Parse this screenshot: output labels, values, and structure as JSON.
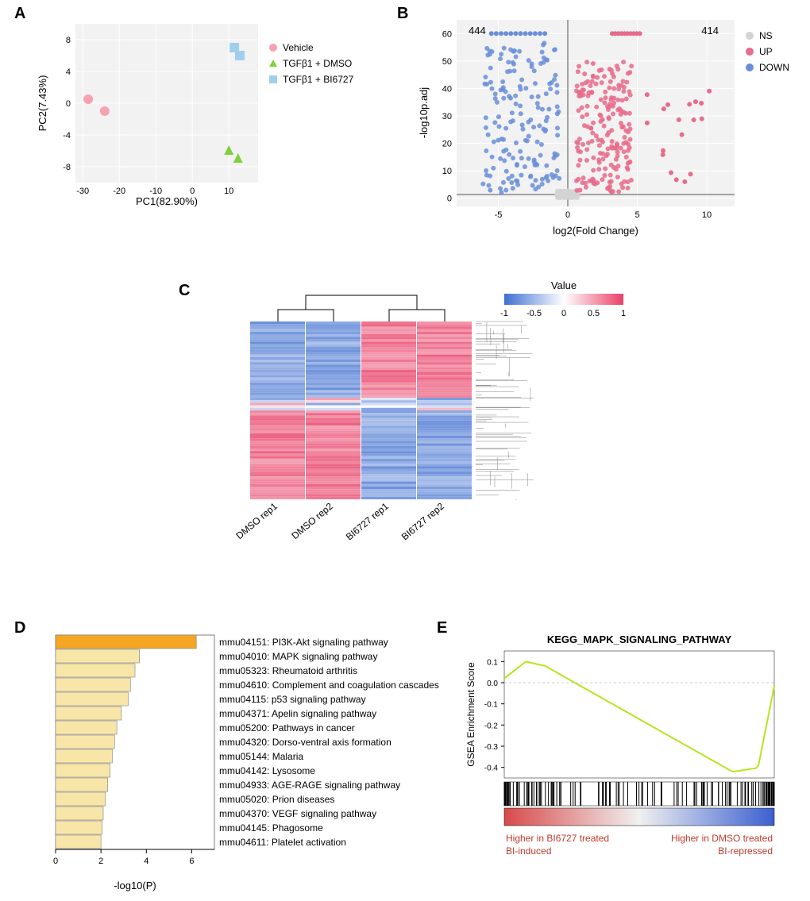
{
  "panelA": {
    "label": "A",
    "type": "scatter",
    "xlabel": "PC1(82.90%)",
    "ylabel": "PC2(7.43%)",
    "xlim": [
      -32,
      18
    ],
    "ylim": [
      -10,
      10
    ],
    "xticks": [
      -30,
      -20,
      -10,
      0,
      10
    ],
    "yticks": [
      -8,
      -4,
      0,
      4,
      8
    ],
    "background_color": "#f2f2f2",
    "grid_color": "#ffffff",
    "series": [
      {
        "name": "Vehicle",
        "marker": "circle",
        "color": "#f7a1b3",
        "points": [
          [
            -28.5,
            0.5
          ],
          [
            -24,
            -1
          ]
        ]
      },
      {
        "name": "TGFβ1 + DMSO",
        "marker": "triangle",
        "color": "#7fd13b",
        "points": [
          [
            10,
            -6
          ],
          [
            12.5,
            -7
          ]
        ]
      },
      {
        "name": "TGFβ1 + BI6727",
        "marker": "square",
        "color": "#a0cfee",
        "points": [
          [
            11.5,
            7
          ],
          [
            13,
            6
          ]
        ]
      }
    ]
  },
  "panelB": {
    "label": "B",
    "type": "volcano",
    "xlabel": "log2(Fold Change)",
    "ylabel": "-log10p.adj",
    "xlim": [
      -8,
      12
    ],
    "ylim": [
      -3,
      65
    ],
    "xticks": [
      -5,
      0,
      5,
      10
    ],
    "yticks": [
      0,
      10,
      20,
      30,
      40,
      50,
      60
    ],
    "background_color": "#f2f2f2",
    "grid_color": "#ffffff",
    "count_down": "444",
    "count_up": "414",
    "legend": [
      {
        "name": "NS",
        "color": "#d3d3d3"
      },
      {
        "name": "UP",
        "color": "#e86b8a"
      },
      {
        "name": "DOWN",
        "color": "#6a8fd8"
      }
    ],
    "colors": {
      "ns": "#d3d3d3",
      "up": "#e86b8a",
      "down": "#6a8fd8"
    }
  },
  "panelC": {
    "label": "C",
    "type": "heatmap",
    "xlabels": [
      "DMSO rep1",
      "DMSO rep2",
      "BI6727 rep1",
      "BI6727 rep2"
    ],
    "legend_title": "Value",
    "legend_ticks": [
      "-1",
      "-0.5",
      "0",
      "0.5",
      "1"
    ],
    "color_low": "#3f6fd1",
    "color_mid": "#ffffff",
    "color_high": "#e94168"
  },
  "panelD": {
    "label": "D",
    "type": "bar",
    "xlabel": "-log10(P)",
    "xlim": [
      0,
      7
    ],
    "xticks": [
      0,
      2,
      4,
      6
    ],
    "highlight_color": "#f5a623",
    "bar_color": "#f7e6a8",
    "border_color": "#808080",
    "items": [
      {
        "id": "mmu04151",
        "name": "PI3K-Akt signaling pathway",
        "value": 6.2,
        "highlight": true
      },
      {
        "id": "mmu04010",
        "name": "MAPK signaling pathway",
        "value": 3.7,
        "highlight": false
      },
      {
        "id": "mmu05323",
        "name": "Rheumatoid arthritis",
        "value": 3.5,
        "highlight": false
      },
      {
        "id": "mmu04610",
        "name": "Complement and coagulation cascades",
        "value": 3.3,
        "highlight": false
      },
      {
        "id": "mmu04115",
        "name": "p53 signaling pathway",
        "value": 3.2,
        "highlight": false
      },
      {
        "id": "mmu04371",
        "name": "Apelin signaling pathway",
        "value": 2.9,
        "highlight": false
      },
      {
        "id": "mmu05200",
        "name": "Pathways in cancer",
        "value": 2.7,
        "highlight": false
      },
      {
        "id": "mmu04320",
        "name": "Dorso-ventral axis formation",
        "value": 2.6,
        "highlight": false
      },
      {
        "id": "mmu05144",
        "name": "Malaria",
        "value": 2.5,
        "highlight": false
      },
      {
        "id": "mmu04142",
        "name": "Lysosome",
        "value": 2.4,
        "highlight": false
      },
      {
        "id": "mmu04933",
        "name": "AGE-RAGE signaling pathway",
        "value": 2.3,
        "highlight": false
      },
      {
        "id": "mmu05020",
        "name": "Prion diseases",
        "value": 2.2,
        "highlight": false
      },
      {
        "id": "mmu04370",
        "name": "VEGF signaling pathway",
        "value": 2.1,
        "highlight": false
      },
      {
        "id": "mmu04145",
        "name": "Phagosome",
        "value": 2.05,
        "highlight": false
      },
      {
        "id": "mmu04611",
        "name": "Platelet activation",
        "value": 2.0,
        "highlight": false
      }
    ]
  },
  "panelE": {
    "label": "E",
    "type": "gsea",
    "title": "KEGG_MAPK_SIGNALING_PATHWAY",
    "ylabel": "GSEA Enrichment Score",
    "ylim": [
      -0.45,
      0.15
    ],
    "yticks": [
      "0.1",
      "0.0",
      "-0.1",
      "-0.2",
      "-0.3",
      "-0.4"
    ],
    "line_color": "#b5e61d",
    "gradient_left": "#d84a4a",
    "gradient_right": "#3a5fd0",
    "label_left_top": "Higher in BI6727 treated",
    "label_left_bottom": "BI-induced",
    "label_right_top": "Higher in DMSO treated",
    "label_right_bottom": "BI-repressed",
    "label_color": "#c0392b"
  }
}
